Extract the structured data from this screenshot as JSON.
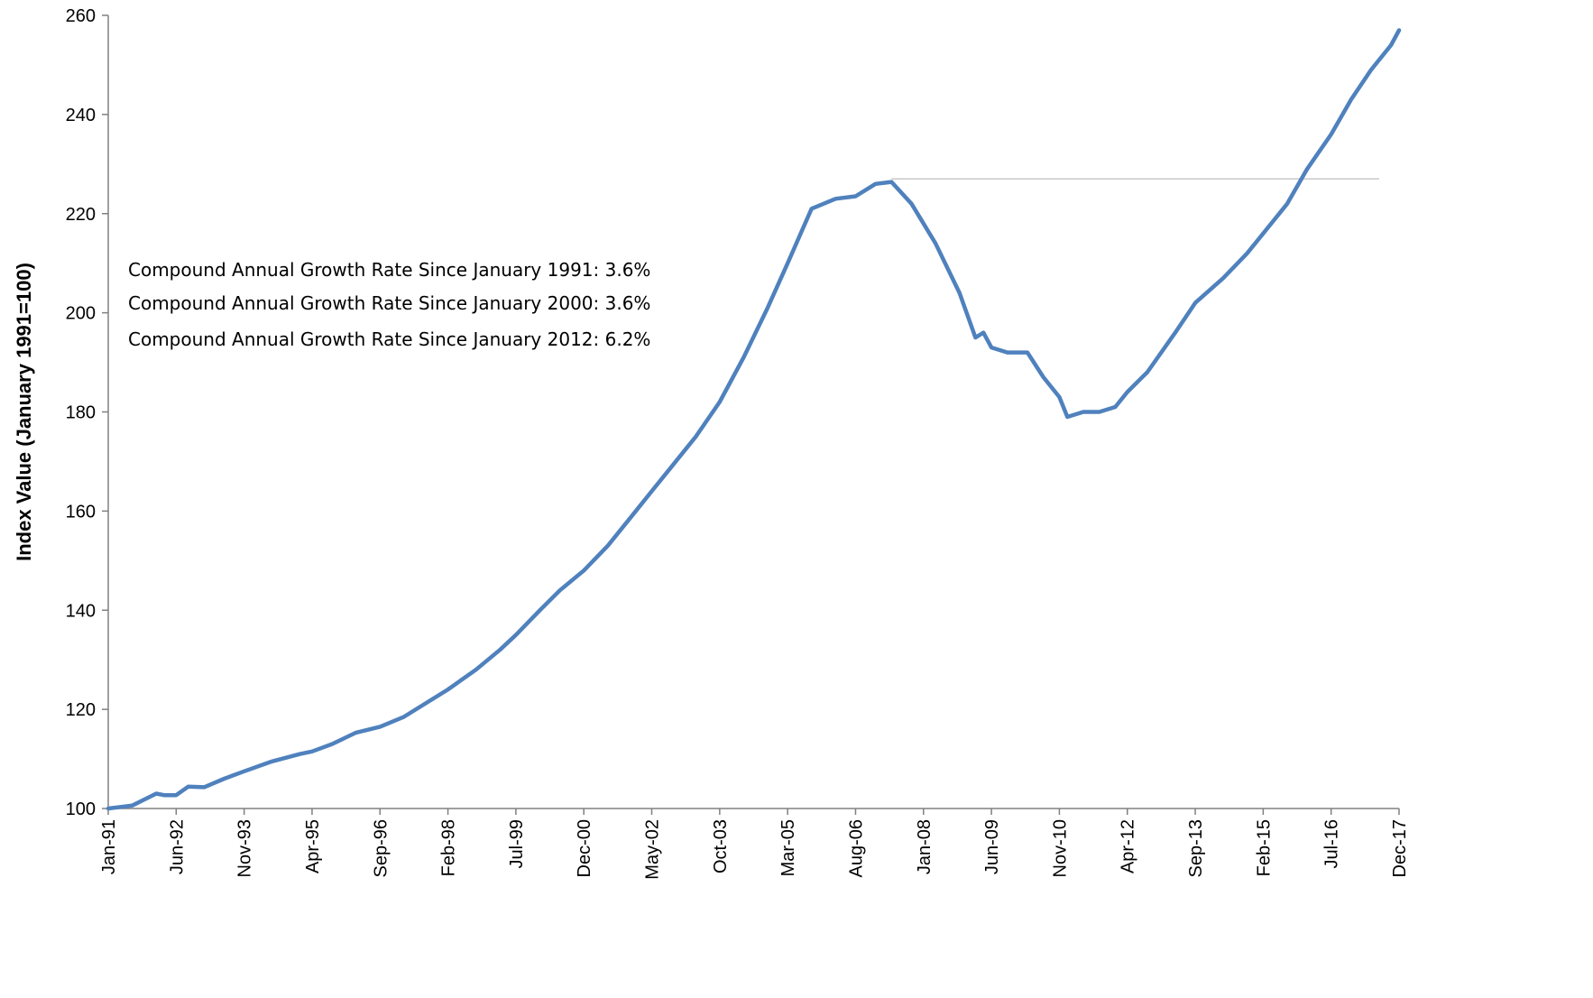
{
  "chart_data": {
    "type": "line",
    "title": "",
    "xlabel": "",
    "ylabel": "Index Value (January 1991=100)",
    "ylim": [
      100,
      260
    ],
    "yticks": [
      100,
      120,
      140,
      160,
      180,
      200,
      220,
      240,
      260
    ],
    "x_tick_labels": [
      "Jan-91",
      "Jun-92",
      "Nov-93",
      "Apr-95",
      "Sep-96",
      "Feb-98",
      "Jul-99",
      "Dec-00",
      "May-02",
      "Oct-03",
      "Mar-05",
      "Aug-06",
      "Jan-08",
      "Jun-09",
      "Nov-10",
      "Apr-12",
      "Sep-13",
      "Feb-15",
      "Jul-16",
      "Dec-17"
    ],
    "grid": false,
    "legend": "none",
    "line_color": "#4F81BD",
    "reference_line": {
      "x_start": "2007-05",
      "x_end": "2017-07",
      "y": 227,
      "color": "#C8C8C8"
    },
    "annotations": [
      "Compound Annual Growth Rate Since January 1991:  3.6%",
      "Compound Annual Growth Rate Since January 2000:  3.6%",
      "Compound Annual Growth Rate Since January 2012:  6.2%"
    ],
    "series": [
      {
        "x": [
          "1991-01",
          "1991-07",
          "1992-01",
          "1992-03",
          "1992-06",
          "1992-09",
          "1993-01",
          "1993-06",
          "1993-11",
          "1994-06",
          "1995-01",
          "1995-04",
          "1995-09",
          "1996-03",
          "1996-09",
          "1997-03",
          "1997-09",
          "1998-02",
          "1998-09",
          "1999-03",
          "1999-07",
          "2000-01",
          "2000-06",
          "2000-12",
          "2001-06",
          "2002-01",
          "2002-05",
          "2002-10",
          "2003-04",
          "2003-10",
          "2004-04",
          "2004-10",
          "2005-03",
          "2005-09",
          "2006-03",
          "2006-08",
          "2007-01",
          "2007-05",
          "2007-10",
          "2008-04",
          "2008-10",
          "2009-02",
          "2009-04",
          "2009-06",
          "2009-10",
          "2010-03",
          "2010-07",
          "2010-11",
          "2011-01",
          "2011-05",
          "2011-09",
          "2012-01",
          "2012-04",
          "2012-09",
          "2013-04",
          "2013-09",
          "2014-04",
          "2014-10",
          "2015-02",
          "2015-08",
          "2016-01",
          "2016-07",
          "2016-12",
          "2017-05",
          "2017-10",
          "2017-12"
        ],
        "values": [
          100,
          100.6,
          103,
          102.7,
          102.7,
          104.4,
          104.3,
          106,
          107.5,
          109.5,
          111,
          111.5,
          113,
          115.3,
          116.5,
          118.5,
          121.5,
          124,
          128,
          132,
          135,
          140,
          144,
          148,
          153,
          160,
          164,
          169,
          175,
          182,
          191,
          201,
          210,
          221,
          223,
          223.5,
          226,
          226.4,
          222,
          214,
          204,
          195,
          196,
          193,
          192,
          192,
          187,
          183,
          179,
          180,
          180,
          181,
          184,
          188,
          196,
          202,
          207,
          212,
          216,
          222,
          229,
          236,
          243,
          249,
          254,
          257
        ]
      }
    ]
  }
}
